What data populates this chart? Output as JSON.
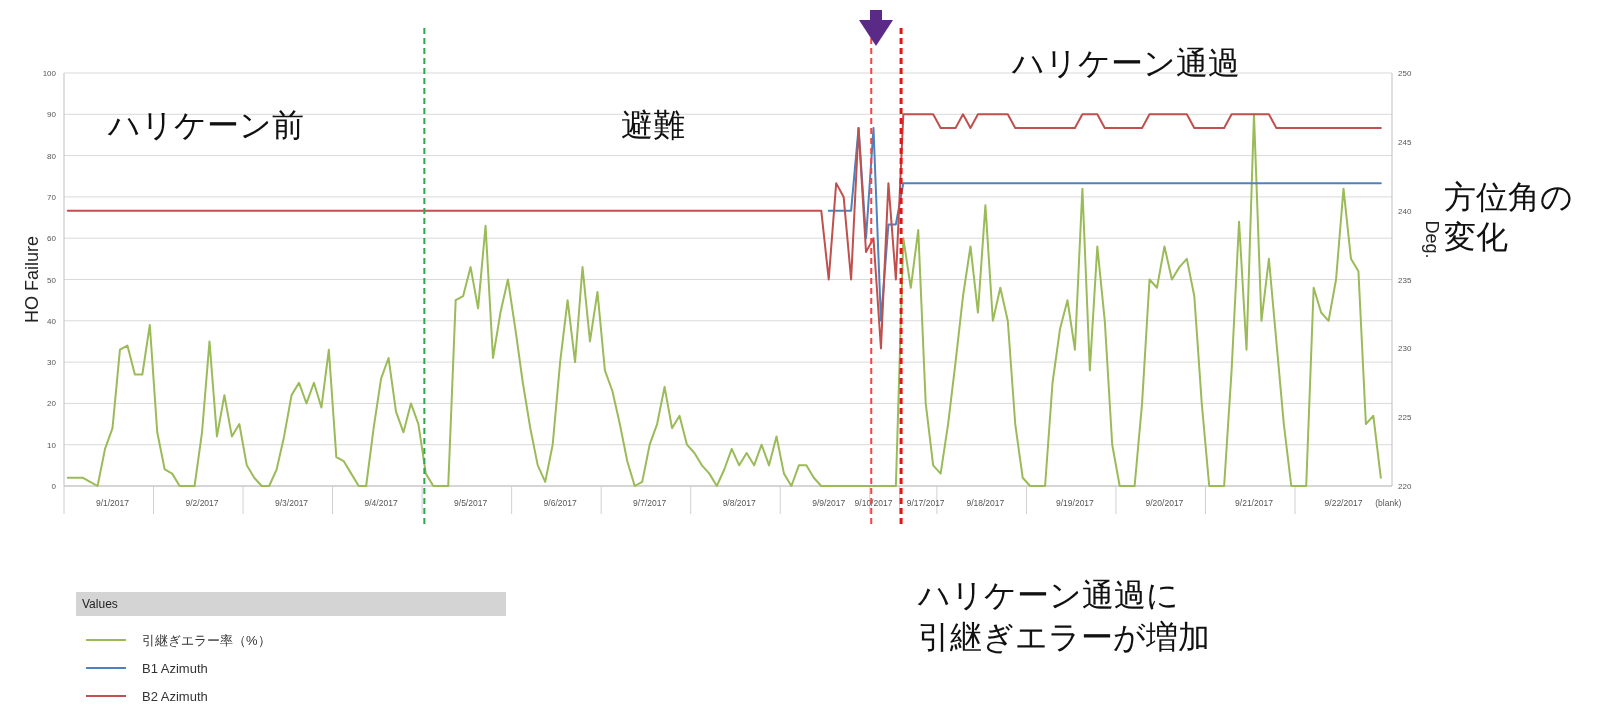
{
  "chart_data": {
    "type": "line",
    "ylabel": "HO Failure",
    "y2label": "Deg.",
    "legend_title": "Values",
    "legend": "bottom left",
    "grid": "y",
    "line_style": "solid",
    "categories": [
      null,
      null,
      null,
      null,
      null,
      null,
      "9/1/2017",
      null,
      null,
      null,
      null,
      null,
      null,
      null,
      null,
      null,
      null,
      null,
      "9/2/2017",
      null,
      null,
      null,
      null,
      null,
      null,
      null,
      null,
      null,
      null,
      null,
      "9/3/2017",
      null,
      null,
      null,
      null,
      null,
      null,
      null,
      null,
      null,
      null,
      null,
      "9/4/2017",
      null,
      null,
      null,
      null,
      null,
      null,
      null,
      null,
      null,
      null,
      null,
      "9/5/2017",
      null,
      null,
      null,
      null,
      null,
      null,
      null,
      null,
      null,
      null,
      null,
      "9/6/2017",
      null,
      null,
      null,
      null,
      null,
      null,
      null,
      null,
      null,
      null,
      null,
      "9/7/2017",
      null,
      null,
      null,
      null,
      null,
      null,
      null,
      null,
      null,
      null,
      null,
      "9/8/2017",
      null,
      null,
      null,
      null,
      null,
      null,
      null,
      null,
      null,
      null,
      null,
      "9/9/2017",
      null,
      null,
      null,
      null,
      null,
      "9/10/2017",
      null,
      null,
      null,
      null,
      null,
      null,
      "9/17/2017",
      null,
      null,
      null,
      null,
      null,
      null,
      null,
      "9/18/2017",
      null,
      null,
      null,
      null,
      null,
      null,
      null,
      null,
      null,
      null,
      null,
      "9/19/2017",
      null,
      null,
      null,
      null,
      null,
      null,
      null,
      null,
      null,
      null,
      null,
      "9/20/2017",
      null,
      null,
      null,
      null,
      null,
      null,
      null,
      null,
      null,
      null,
      null,
      "9/21/2017",
      null,
      null,
      null,
      null,
      null,
      null,
      null,
      null,
      null,
      null,
      null,
      "9/22/2017",
      null,
      null,
      null,
      null,
      null,
      "(blank)"
    ],
    "ylim": [
      0,
      100
    ],
    "yticks": [
      0,
      10,
      20,
      30,
      40,
      50,
      60,
      70,
      80,
      90,
      100
    ],
    "y2lim": [
      220,
      250
    ],
    "y2ticks": [
      220,
      225,
      230,
      235,
      240,
      245,
      250
    ],
    "series": [
      {
        "name": "引継ぎエラー率（%）",
        "color": "#9bbb59",
        "values": [
          2,
          2,
          2,
          1,
          0,
          9,
          14,
          33,
          34,
          27,
          27,
          39,
          13,
          4,
          3,
          0,
          0,
          0,
          13,
          35,
          12,
          22,
          12,
          15,
          5,
          2,
          0,
          0,
          4,
          12,
          22,
          25,
          20,
          25,
          19,
          33,
          7,
          6,
          3,
          0,
          0,
          14,
          26,
          31,
          18,
          13,
          20,
          15,
          3,
          0,
          0,
          0,
          45,
          46,
          53,
          43,
          63,
          31,
          42,
          50,
          38,
          25,
          14,
          5,
          1,
          10,
          30,
          45,
          30,
          53,
          35,
          47,
          28,
          23,
          15,
          6,
          0,
          1,
          10,
          15,
          24,
          14,
          17,
          10,
          8,
          5,
          3,
          0,
          4,
          9,
          5,
          8,
          5,
          10,
          5,
          12,
          3,
          0,
          5,
          5,
          2,
          0,
          0,
          0,
          0,
          0,
          0,
          0,
          0,
          0,
          0,
          0,
          60,
          48,
          62,
          20,
          5,
          3,
          15,
          30,
          46,
          58,
          42,
          68,
          40,
          48,
          40,
          15,
          2,
          0,
          0,
          0,
          25,
          38,
          45,
          33,
          72,
          28,
          58,
          40,
          10,
          0,
          0,
          0,
          20,
          50,
          48,
          58,
          50,
          53,
          55,
          46,
          20,
          0,
          0,
          0,
          28,
          64,
          33,
          90,
          40,
          55,
          35,
          15,
          0,
          0,
          0,
          48,
          42,
          40,
          50,
          72,
          55,
          52,
          15,
          17,
          2,
          null
        ]
      },
      {
        "name": "B1 Azimuth",
        "color": "#4f81bd",
        "axis": "y2",
        "values": [
          null,
          null,
          null,
          null,
          null,
          null,
          null,
          null,
          null,
          null,
          null,
          null,
          null,
          null,
          null,
          null,
          null,
          null,
          null,
          null,
          null,
          null,
          null,
          null,
          null,
          null,
          null,
          null,
          null,
          null,
          null,
          null,
          null,
          null,
          null,
          null,
          null,
          null,
          null,
          null,
          null,
          null,
          null,
          null,
          null,
          null,
          null,
          null,
          null,
          null,
          null,
          null,
          null,
          null,
          null,
          null,
          null,
          null,
          null,
          null,
          null,
          null,
          null,
          null,
          null,
          null,
          null,
          null,
          null,
          null,
          null,
          null,
          null,
          null,
          null,
          null,
          null,
          null,
          null,
          null,
          null,
          null,
          null,
          null,
          null,
          null,
          null,
          null,
          null,
          null,
          null,
          null,
          null,
          null,
          null,
          null,
          null,
          null,
          null,
          null,
          null,
          null,
          240,
          240,
          240,
          240,
          246,
          238,
          246,
          232,
          239,
          239,
          242,
          242,
          242,
          242,
          242,
          242,
          242,
          242,
          242,
          242,
          242,
          242,
          242,
          242,
          242,
          242,
          242,
          242,
          242,
          242,
          242,
          242,
          242,
          242,
          242,
          242,
          242,
          242,
          242,
          242,
          242,
          242,
          242,
          242,
          242,
          242,
          242,
          242,
          242,
          242,
          242,
          242,
          242,
          242,
          242,
          242,
          242,
          242,
          242,
          242,
          242,
          242,
          242,
          242,
          242,
          242,
          242,
          242,
          242,
          242,
          242,
          242,
          242,
          242,
          242,
          null
        ]
      },
      {
        "name": "B2 Azimuth",
        "color": "#c0504d",
        "axis": "y2",
        "values": [
          240,
          240,
          240,
          240,
          240,
          240,
          240,
          240,
          240,
          240,
          240,
          240,
          240,
          240,
          240,
          240,
          240,
          240,
          240,
          240,
          240,
          240,
          240,
          240,
          240,
          240,
          240,
          240,
          240,
          240,
          240,
          240,
          240,
          240,
          240,
          240,
          240,
          240,
          240,
          240,
          240,
          240,
          240,
          240,
          240,
          240,
          240,
          240,
          240,
          240,
          240,
          240,
          240,
          240,
          240,
          240,
          240,
          240,
          240,
          240,
          240,
          240,
          240,
          240,
          240,
          240,
          240,
          240,
          240,
          240,
          240,
          240,
          240,
          240,
          240,
          240,
          240,
          240,
          240,
          240,
          240,
          240,
          240,
          240,
          240,
          240,
          240,
          240,
          240,
          240,
          240,
          240,
          240,
          240,
          240,
          240,
          240,
          240,
          240,
          240,
          240,
          240,
          235,
          242,
          241,
          235,
          246,
          237,
          238,
          230,
          242,
          235,
          247,
          247,
          247,
          247,
          247,
          246,
          246,
          246,
          247,
          246,
          247,
          247,
          247,
          247,
          247,
          246,
          246,
          246,
          246,
          246,
          246,
          246,
          246,
          246,
          247,
          247,
          247,
          246,
          246,
          246,
          246,
          246,
          246,
          247,
          247,
          247,
          247,
          247,
          247,
          246,
          246,
          246,
          246,
          246,
          247,
          247,
          247,
          247,
          247,
          247,
          246,
          246,
          246,
          246,
          246,
          246,
          246,
          246,
          246,
          246,
          246,
          246,
          246,
          246,
          246,
          null
        ]
      }
    ],
    "annotations": [
      "ハリケーン前",
      "避難",
      "ハリケーン通過",
      "方位角の",
      "変化",
      "ハリケーン通過に",
      "引継ぎエラーが増加"
    ]
  }
}
